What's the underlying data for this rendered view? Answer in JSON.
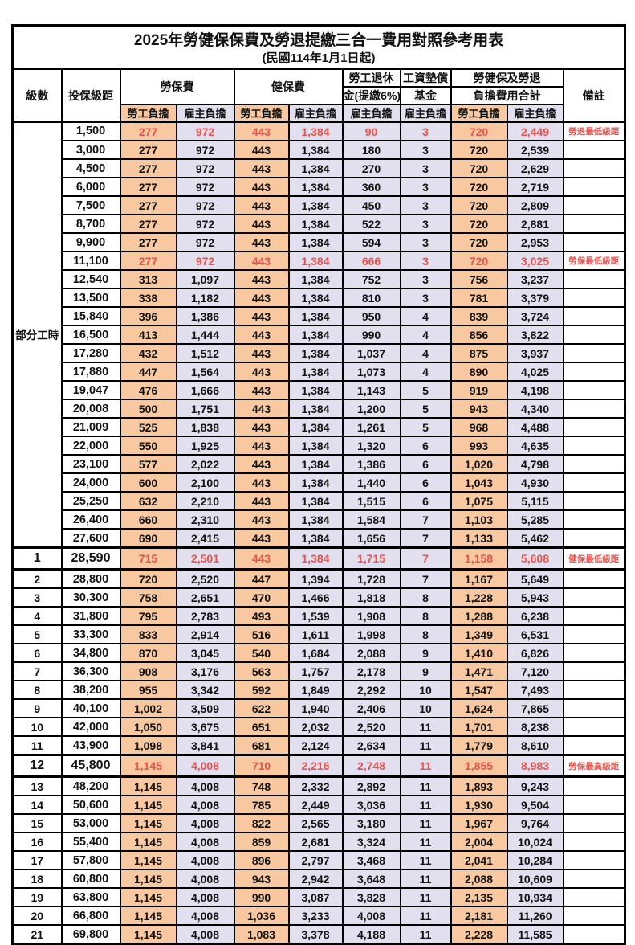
{
  "title": "2025年勞健保保費及勞退提繳三合一費用對照參考用表",
  "subtitle": "(民國114年1月1日起)",
  "colors": {
    "employee_col_bg": "#f8c9a0",
    "employer_col_bg": "#e2dfee",
    "highlight_red": "#e8524d",
    "border": "#000000"
  },
  "header": {
    "level": "級數",
    "bracket": "投保級距",
    "labor": "勞保費",
    "health": "健保費",
    "pension_line1": "勞工退休",
    "pension_line2": "金(提繳6%)",
    "wage_fund_line1": "工資墊償",
    "wage_fund_line2": "基金",
    "total_line1": "勞健保及勞退",
    "total_line2": "負擔費用合計",
    "remark": "備註",
    "employee": "勞工負擔",
    "employer": "雇主負擔"
  },
  "part_time_label": "部分工時",
  "rows": [
    {
      "level": "",
      "bracket": "1,500",
      "labor_emp": "277",
      "labor_er": "972",
      "health_emp": "443",
      "health_er": "1,384",
      "pension_er": "90",
      "fund_er": "3",
      "total_emp": "720",
      "total_er": "2,449",
      "remark": "勞退最低級距",
      "highlight": true,
      "emphasis": false
    },
    {
      "level": "",
      "bracket": "3,000",
      "labor_emp": "277",
      "labor_er": "972",
      "health_emp": "443",
      "health_er": "1,384",
      "pension_er": "180",
      "fund_er": "3",
      "total_emp": "720",
      "total_er": "2,539",
      "remark": "",
      "highlight": false,
      "emphasis": false
    },
    {
      "level": "",
      "bracket": "4,500",
      "labor_emp": "277",
      "labor_er": "972",
      "health_emp": "443",
      "health_er": "1,384",
      "pension_er": "270",
      "fund_er": "3",
      "total_emp": "720",
      "total_er": "2,629",
      "remark": "",
      "highlight": false,
      "emphasis": false
    },
    {
      "level": "",
      "bracket": "6,000",
      "labor_emp": "277",
      "labor_er": "972",
      "health_emp": "443",
      "health_er": "1,384",
      "pension_er": "360",
      "fund_er": "3",
      "total_emp": "720",
      "total_er": "2,719",
      "remark": "",
      "highlight": false,
      "emphasis": false
    },
    {
      "level": "",
      "bracket": "7,500",
      "labor_emp": "277",
      "labor_er": "972",
      "health_emp": "443",
      "health_er": "1,384",
      "pension_er": "450",
      "fund_er": "3",
      "total_emp": "720",
      "total_er": "2,809",
      "remark": "",
      "highlight": false,
      "emphasis": false
    },
    {
      "level": "",
      "bracket": "8,700",
      "labor_emp": "277",
      "labor_er": "972",
      "health_emp": "443",
      "health_er": "1,384",
      "pension_er": "522",
      "fund_er": "3",
      "total_emp": "720",
      "total_er": "2,881",
      "remark": "",
      "highlight": false,
      "emphasis": false
    },
    {
      "level": "",
      "bracket": "9,900",
      "labor_emp": "277",
      "labor_er": "972",
      "health_emp": "443",
      "health_er": "1,384",
      "pension_er": "594",
      "fund_er": "3",
      "total_emp": "720",
      "total_er": "2,953",
      "remark": "",
      "highlight": false,
      "emphasis": false
    },
    {
      "level": "",
      "bracket": "11,100",
      "labor_emp": "277",
      "labor_er": "972",
      "health_emp": "443",
      "health_er": "1,384",
      "pension_er": "666",
      "fund_er": "3",
      "total_emp": "720",
      "total_er": "3,025",
      "remark": "勞保最低級距",
      "highlight": true,
      "emphasis": false
    },
    {
      "level": "",
      "bracket": "12,540",
      "labor_emp": "313",
      "labor_er": "1,097",
      "health_emp": "443",
      "health_er": "1,384",
      "pension_er": "752",
      "fund_er": "3",
      "total_emp": "756",
      "total_er": "3,237",
      "remark": "",
      "highlight": false,
      "emphasis": false
    },
    {
      "level": "",
      "bracket": "13,500",
      "labor_emp": "338",
      "labor_er": "1,182",
      "health_emp": "443",
      "health_er": "1,384",
      "pension_er": "810",
      "fund_er": "3",
      "total_emp": "781",
      "total_er": "3,379",
      "remark": "",
      "highlight": false,
      "emphasis": false
    },
    {
      "level": "",
      "bracket": "15,840",
      "labor_emp": "396",
      "labor_er": "1,386",
      "health_emp": "443",
      "health_er": "1,384",
      "pension_er": "950",
      "fund_er": "4",
      "total_emp": "839",
      "total_er": "3,724",
      "remark": "",
      "highlight": false,
      "emphasis": false
    },
    {
      "level": "",
      "bracket": "16,500",
      "labor_emp": "413",
      "labor_er": "1,444",
      "health_emp": "443",
      "health_er": "1,384",
      "pension_er": "990",
      "fund_er": "4",
      "total_emp": "856",
      "total_er": "3,822",
      "remark": "",
      "highlight": false,
      "emphasis": false
    },
    {
      "level": "",
      "bracket": "17,280",
      "labor_emp": "432",
      "labor_er": "1,512",
      "health_emp": "443",
      "health_er": "1,384",
      "pension_er": "1,037",
      "fund_er": "4",
      "total_emp": "875",
      "total_er": "3,937",
      "remark": "",
      "highlight": false,
      "emphasis": false
    },
    {
      "level": "",
      "bracket": "17,880",
      "labor_emp": "447",
      "labor_er": "1,564",
      "health_emp": "443",
      "health_er": "1,384",
      "pension_er": "1,073",
      "fund_er": "4",
      "total_emp": "890",
      "total_er": "4,025",
      "remark": "",
      "highlight": false,
      "emphasis": false
    },
    {
      "level": "",
      "bracket": "19,047",
      "labor_emp": "476",
      "labor_er": "1,666",
      "health_emp": "443",
      "health_er": "1,384",
      "pension_er": "1,143",
      "fund_er": "5",
      "total_emp": "919",
      "total_er": "4,198",
      "remark": "",
      "highlight": false,
      "emphasis": false
    },
    {
      "level": "",
      "bracket": "20,008",
      "labor_emp": "500",
      "labor_er": "1,751",
      "health_emp": "443",
      "health_er": "1,384",
      "pension_er": "1,200",
      "fund_er": "5",
      "total_emp": "943",
      "total_er": "4,340",
      "remark": "",
      "highlight": false,
      "emphasis": false
    },
    {
      "level": "",
      "bracket": "21,009",
      "labor_emp": "525",
      "labor_er": "1,838",
      "health_emp": "443",
      "health_er": "1,384",
      "pension_er": "1,261",
      "fund_er": "5",
      "total_emp": "968",
      "total_er": "4,488",
      "remark": "",
      "highlight": false,
      "emphasis": false
    },
    {
      "level": "",
      "bracket": "22,000",
      "labor_emp": "550",
      "labor_er": "1,925",
      "health_emp": "443",
      "health_er": "1,384",
      "pension_er": "1,320",
      "fund_er": "6",
      "total_emp": "993",
      "total_er": "4,635",
      "remark": "",
      "highlight": false,
      "emphasis": false
    },
    {
      "level": "",
      "bracket": "23,100",
      "labor_emp": "577",
      "labor_er": "2,022",
      "health_emp": "443",
      "health_er": "1,384",
      "pension_er": "1,386",
      "fund_er": "6",
      "total_emp": "1,020",
      "total_er": "4,798",
      "remark": "",
      "highlight": false,
      "emphasis": false
    },
    {
      "level": "",
      "bracket": "24,000",
      "labor_emp": "600",
      "labor_er": "2,100",
      "health_emp": "443",
      "health_er": "1,384",
      "pension_er": "1,440",
      "fund_er": "6",
      "total_emp": "1,043",
      "total_er": "4,930",
      "remark": "",
      "highlight": false,
      "emphasis": false
    },
    {
      "level": "",
      "bracket": "25,250",
      "labor_emp": "632",
      "labor_er": "2,210",
      "health_emp": "443",
      "health_er": "1,384",
      "pension_er": "1,515",
      "fund_er": "6",
      "total_emp": "1,075",
      "total_er": "5,115",
      "remark": "",
      "highlight": false,
      "emphasis": false
    },
    {
      "level": "",
      "bracket": "26,400",
      "labor_emp": "660",
      "labor_er": "2,310",
      "health_emp": "443",
      "health_er": "1,384",
      "pension_er": "1,584",
      "fund_er": "7",
      "total_emp": "1,103",
      "total_er": "5,285",
      "remark": "",
      "highlight": false,
      "emphasis": false
    },
    {
      "level": "",
      "bracket": "27,600",
      "labor_emp": "690",
      "labor_er": "2,415",
      "health_emp": "443",
      "health_er": "1,384",
      "pension_er": "1,656",
      "fund_er": "7",
      "total_emp": "1,133",
      "total_er": "5,462",
      "remark": "",
      "highlight": false,
      "emphasis": false
    },
    {
      "level": "1",
      "bracket": "28,590",
      "labor_emp": "715",
      "labor_er": "2,501",
      "health_emp": "443",
      "health_er": "1,384",
      "pension_er": "1,715",
      "fund_er": "7",
      "total_emp": "1,158",
      "total_er": "5,608",
      "remark": "健保最低級距",
      "highlight": true,
      "emphasis": true
    },
    {
      "level": "2",
      "bracket": "28,800",
      "labor_emp": "720",
      "labor_er": "2,520",
      "health_emp": "447",
      "health_er": "1,394",
      "pension_er": "1,728",
      "fund_er": "7",
      "total_emp": "1,167",
      "total_er": "5,649",
      "remark": "",
      "highlight": false,
      "emphasis": false
    },
    {
      "level": "3",
      "bracket": "30,300",
      "labor_emp": "758",
      "labor_er": "2,651",
      "health_emp": "470",
      "health_er": "1,466",
      "pension_er": "1,818",
      "fund_er": "8",
      "total_emp": "1,228",
      "total_er": "5,943",
      "remark": "",
      "highlight": false,
      "emphasis": false
    },
    {
      "level": "4",
      "bracket": "31,800",
      "labor_emp": "795",
      "labor_er": "2,783",
      "health_emp": "493",
      "health_er": "1,539",
      "pension_er": "1,908",
      "fund_er": "8",
      "total_emp": "1,288",
      "total_er": "6,238",
      "remark": "",
      "highlight": false,
      "emphasis": false
    },
    {
      "level": "5",
      "bracket": "33,300",
      "labor_emp": "833",
      "labor_er": "2,914",
      "health_emp": "516",
      "health_er": "1,611",
      "pension_er": "1,998",
      "fund_er": "8",
      "total_emp": "1,349",
      "total_er": "6,531",
      "remark": "",
      "highlight": false,
      "emphasis": false
    },
    {
      "level": "6",
      "bracket": "34,800",
      "labor_emp": "870",
      "labor_er": "3,045",
      "health_emp": "540",
      "health_er": "1,684",
      "pension_er": "2,088",
      "fund_er": "9",
      "total_emp": "1,410",
      "total_er": "6,826",
      "remark": "",
      "highlight": false,
      "emphasis": false
    },
    {
      "level": "7",
      "bracket": "36,300",
      "labor_emp": "908",
      "labor_er": "3,176",
      "health_emp": "563",
      "health_er": "1,757",
      "pension_er": "2,178",
      "fund_er": "9",
      "total_emp": "1,471",
      "total_er": "7,120",
      "remark": "",
      "highlight": false,
      "emphasis": false
    },
    {
      "level": "8",
      "bracket": "38,200",
      "labor_emp": "955",
      "labor_er": "3,342",
      "health_emp": "592",
      "health_er": "1,849",
      "pension_er": "2,292",
      "fund_er": "10",
      "total_emp": "1,547",
      "total_er": "7,493",
      "remark": "",
      "highlight": false,
      "emphasis": false
    },
    {
      "level": "9",
      "bracket": "40,100",
      "labor_emp": "1,002",
      "labor_er": "3,509",
      "health_emp": "622",
      "health_er": "1,940",
      "pension_er": "2,406",
      "fund_er": "10",
      "total_emp": "1,624",
      "total_er": "7,865",
      "remark": "",
      "highlight": false,
      "emphasis": false
    },
    {
      "level": "10",
      "bracket": "42,000",
      "labor_emp": "1,050",
      "labor_er": "3,675",
      "health_emp": "651",
      "health_er": "2,032",
      "pension_er": "2,520",
      "fund_er": "11",
      "total_emp": "1,701",
      "total_er": "8,238",
      "remark": "",
      "highlight": false,
      "emphasis": false
    },
    {
      "level": "11",
      "bracket": "43,900",
      "labor_emp": "1,098",
      "labor_er": "3,841",
      "health_emp": "681",
      "health_er": "2,124",
      "pension_er": "2,634",
      "fund_er": "11",
      "total_emp": "1,779",
      "total_er": "8,610",
      "remark": "",
      "highlight": false,
      "emphasis": false
    },
    {
      "level": "12",
      "bracket": "45,800",
      "labor_emp": "1,145",
      "labor_er": "4,008",
      "health_emp": "710",
      "health_er": "2,216",
      "pension_er": "2,748",
      "fund_er": "11",
      "total_emp": "1,855",
      "total_er": "8,983",
      "remark": "勞保最高級距",
      "highlight": true,
      "emphasis": true
    },
    {
      "level": "13",
      "bracket": "48,200",
      "labor_emp": "1,145",
      "labor_er": "4,008",
      "health_emp": "748",
      "health_er": "2,332",
      "pension_er": "2,892",
      "fund_er": "11",
      "total_emp": "1,893",
      "total_er": "9,243",
      "remark": "",
      "highlight": false,
      "emphasis": false
    },
    {
      "level": "14",
      "bracket": "50,600",
      "labor_emp": "1,145",
      "labor_er": "4,008",
      "health_emp": "785",
      "health_er": "2,449",
      "pension_er": "3,036",
      "fund_er": "11",
      "total_emp": "1,930",
      "total_er": "9,504",
      "remark": "",
      "highlight": false,
      "emphasis": false
    },
    {
      "level": "15",
      "bracket": "53,000",
      "labor_emp": "1,145",
      "labor_er": "4,008",
      "health_emp": "822",
      "health_er": "2,565",
      "pension_er": "3,180",
      "fund_er": "11",
      "total_emp": "1,967",
      "total_er": "9,764",
      "remark": "",
      "highlight": false,
      "emphasis": false
    },
    {
      "level": "16",
      "bracket": "55,400",
      "labor_emp": "1,145",
      "labor_er": "4,008",
      "health_emp": "859",
      "health_er": "2,681",
      "pension_er": "3,324",
      "fund_er": "11",
      "total_emp": "2,004",
      "total_er": "10,024",
      "remark": "",
      "highlight": false,
      "emphasis": false
    },
    {
      "level": "17",
      "bracket": "57,800",
      "labor_emp": "1,145",
      "labor_er": "4,008",
      "health_emp": "896",
      "health_er": "2,797",
      "pension_er": "3,468",
      "fund_er": "11",
      "total_emp": "2,041",
      "total_er": "10,284",
      "remark": "",
      "highlight": false,
      "emphasis": false
    },
    {
      "level": "18",
      "bracket": "60,800",
      "labor_emp": "1,145",
      "labor_er": "4,008",
      "health_emp": "943",
      "health_er": "2,942",
      "pension_er": "3,648",
      "fund_er": "11",
      "total_emp": "2,088",
      "total_er": "10,609",
      "remark": "",
      "highlight": false,
      "emphasis": false
    },
    {
      "level": "19",
      "bracket": "63,800",
      "labor_emp": "1,145",
      "labor_er": "4,008",
      "health_emp": "990",
      "health_er": "3,087",
      "pension_er": "3,828",
      "fund_er": "11",
      "total_emp": "2,135",
      "total_er": "10,934",
      "remark": "",
      "highlight": false,
      "emphasis": false
    },
    {
      "level": "20",
      "bracket": "66,800",
      "labor_emp": "1,145",
      "labor_er": "4,008",
      "health_emp": "1,036",
      "health_er": "3,233",
      "pension_er": "4,008",
      "fund_er": "11",
      "total_emp": "2,181",
      "total_er": "11,260",
      "remark": "",
      "highlight": false,
      "emphasis": false
    },
    {
      "level": "21",
      "bracket": "69,800",
      "labor_emp": "1,145",
      "labor_er": "4,008",
      "health_emp": "1,083",
      "health_er": "3,378",
      "pension_er": "4,188",
      "fund_er": "11",
      "total_emp": "2,228",
      "total_er": "11,585",
      "remark": "",
      "highlight": false,
      "emphasis": false
    }
  ]
}
